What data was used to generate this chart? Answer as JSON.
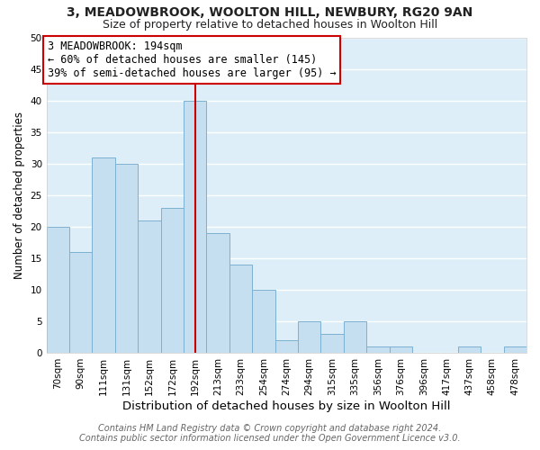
{
  "title": "3, MEADOWBROOK, WOOLTON HILL, NEWBURY, RG20 9AN",
  "subtitle": "Size of property relative to detached houses in Woolton Hill",
  "xlabel": "Distribution of detached houses by size in Woolton Hill",
  "ylabel": "Number of detached properties",
  "bin_labels": [
    "70sqm",
    "90sqm",
    "111sqm",
    "131sqm",
    "152sqm",
    "172sqm",
    "192sqm",
    "213sqm",
    "233sqm",
    "254sqm",
    "274sqm",
    "294sqm",
    "315sqm",
    "335sqm",
    "356sqm",
    "376sqm",
    "396sqm",
    "417sqm",
    "437sqm",
    "458sqm",
    "478sqm"
  ],
  "bin_heights": [
    20,
    16,
    31,
    30,
    21,
    23,
    40,
    19,
    14,
    10,
    2,
    5,
    3,
    5,
    1,
    1,
    0,
    0,
    1,
    0,
    1
  ],
  "bar_color": "#c5dff0",
  "bar_edge_color": "#7db0d0",
  "vline_index": 6,
  "vline_color": "#cc0000",
  "annotation_title": "3 MEADOWBROOK: 194sqm",
  "annotation_line1": "← 60% of detached houses are smaller (145)",
  "annotation_line2": "39% of semi-detached houses are larger (95) →",
  "annotation_box_facecolor": "#ffffff",
  "annotation_box_edgecolor": "#cc0000",
  "ylim": [
    0,
    50
  ],
  "yticks": [
    0,
    5,
    10,
    15,
    20,
    25,
    30,
    35,
    40,
    45,
    50
  ],
  "footer1": "Contains HM Land Registry data © Crown copyright and database right 2024.",
  "footer2": "Contains public sector information licensed under the Open Government Licence v3.0.",
  "fig_background_color": "#ffffff",
  "plot_background_color": "#ddeef8",
  "grid_color": "#ffffff",
  "title_fontsize": 10,
  "subtitle_fontsize": 9,
  "xlabel_fontsize": 9.5,
  "ylabel_fontsize": 8.5,
  "tick_fontsize": 7.5,
  "footer_fontsize": 7,
  "ann_fontsize": 8.5
}
